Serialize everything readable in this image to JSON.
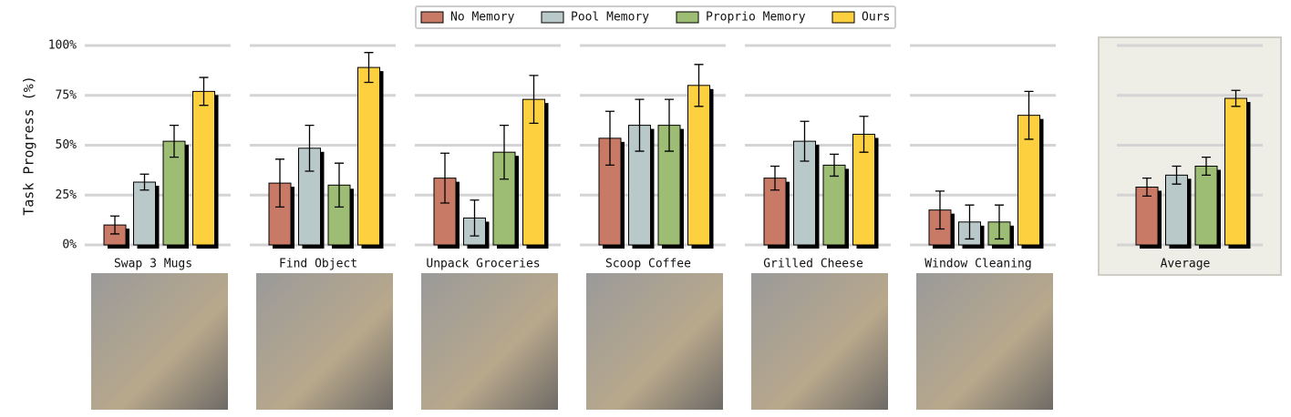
{
  "chart_data": [
    {
      "type": "bar",
      "title": "Swap 3 Mugs",
      "ylabel": "Task Progress (%)",
      "ylim": [
        0,
        100
      ],
      "yticks": [
        {
          "value": 0,
          "label": "0%"
        },
        {
          "value": 25,
          "label": "25%"
        },
        {
          "value": 50,
          "label": "50%"
        },
        {
          "value": 75,
          "label": "75%"
        },
        {
          "value": 100,
          "label": "100%"
        }
      ],
      "grid": true,
      "series": [
        {
          "name": "No Memory",
          "color": "#c87a67",
          "values": [
            10
          ],
          "errors": [
            4.5
          ]
        },
        {
          "name": "Pool Memory",
          "color": "#b9c8c8",
          "values": [
            31.5
          ],
          "errors": [
            4
          ]
        },
        {
          "name": "Proprio Memory",
          "color": "#9dbd74",
          "values": [
            52
          ],
          "errors": [
            8
          ]
        },
        {
          "name": "Ours",
          "color": "#fdd040",
          "values": [
            77
          ],
          "errors": [
            7
          ]
        }
      ]
    },
    {
      "type": "bar",
      "title": "Find Object",
      "ylim": [
        0,
        100
      ],
      "yticks": [
        0,
        25,
        50,
        75,
        100
      ],
      "grid": true,
      "series": [
        {
          "color": "#c87a67",
          "values": [
            31
          ],
          "errors": [
            12
          ]
        },
        {
          "color": "#b9c8c8",
          "values": [
            48.5
          ],
          "errors": [
            11.5
          ]
        },
        {
          "color": "#9dbd74",
          "values": [
            30
          ],
          "errors": [
            11
          ]
        },
        {
          "color": "#fdd040",
          "values": [
            89
          ],
          "errors": [
            7.5
          ]
        }
      ]
    },
    {
      "type": "bar",
      "title": "Unpack Groceries",
      "ylim": [
        0,
        100
      ],
      "yticks": [
        0,
        25,
        50,
        75,
        100
      ],
      "grid": true,
      "series": [
        {
          "color": "#c87a67",
          "values": [
            33.5
          ],
          "errors": [
            12.5
          ]
        },
        {
          "color": "#b9c8c8",
          "values": [
            13.5
          ],
          "errors": [
            9
          ]
        },
        {
          "color": "#9dbd74",
          "values": [
            46.5
          ],
          "errors": [
            13.5
          ]
        },
        {
          "color": "#fdd040",
          "values": [
            73
          ],
          "errors": [
            12
          ]
        }
      ]
    },
    {
      "type": "bar",
      "title": "Scoop Coffee",
      "ylim": [
        0,
        100
      ],
      "yticks": [
        0,
        25,
        50,
        75,
        100
      ],
      "grid": true,
      "series": [
        {
          "color": "#c87a67",
          "values": [
            53.5
          ],
          "errors": [
            13.5
          ]
        },
        {
          "color": "#b9c8c8",
          "values": [
            60
          ],
          "errors": [
            13
          ]
        },
        {
          "color": "#9dbd74",
          "values": [
            60
          ],
          "errors": [
            13
          ]
        },
        {
          "color": "#fdd040",
          "values": [
            80
          ],
          "errors": [
            10.5
          ]
        }
      ]
    },
    {
      "type": "bar",
      "title": "Grilled Cheese",
      "ylim": [
        0,
        100
      ],
      "yticks": [
        0,
        25,
        50,
        75,
        100
      ],
      "grid": true,
      "series": [
        {
          "color": "#c87a67",
          "values": [
            33.5
          ],
          "errors": [
            6
          ]
        },
        {
          "color": "#b9c8c8",
          "values": [
            52
          ],
          "errors": [
            10
          ]
        },
        {
          "color": "#9dbd74",
          "values": [
            40
          ],
          "errors": [
            5.5
          ]
        },
        {
          "color": "#fdd040",
          "values": [
            55.5
          ],
          "errors": [
            9
          ]
        }
      ]
    },
    {
      "type": "bar",
      "title": "Window Cleaning",
      "ylim": [
        0,
        100
      ],
      "yticks": [
        0,
        25,
        50,
        75,
        100
      ],
      "grid": true,
      "series": [
        {
          "color": "#c87a67",
          "values": [
            17.5
          ],
          "errors": [
            9.5
          ]
        },
        {
          "color": "#b9c8c8",
          "values": [
            11.5
          ],
          "errors": [
            8.5
          ]
        },
        {
          "color": "#9dbd74",
          "values": [
            11.5
          ],
          "errors": [
            8.5
          ]
        },
        {
          "color": "#fdd040",
          "values": [
            65
          ],
          "errors": [
            12
          ]
        }
      ]
    },
    {
      "type": "bar",
      "title": "Average",
      "ylim": [
        0,
        100
      ],
      "yticks": [
        0,
        25,
        50,
        75,
        100
      ],
      "grid": true,
      "series": [
        {
          "color": "#c87a67",
          "values": [
            29
          ],
          "errors": [
            4.5
          ]
        },
        {
          "color": "#b9c8c8",
          "values": [
            35
          ],
          "errors": [
            4.5
          ]
        },
        {
          "color": "#9dbd74",
          "values": [
            39.5
          ],
          "errors": [
            4.5
          ]
        },
        {
          "color": "#fdd040",
          "values": [
            73.5
          ],
          "errors": [
            4
          ]
        }
      ]
    }
  ]
}
